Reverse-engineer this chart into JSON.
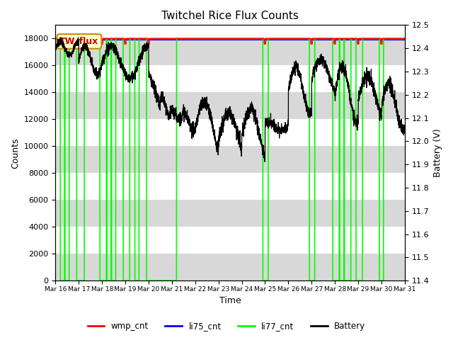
{
  "title": "Twitchel Rice Flux Counts",
  "xlabel": "Time",
  "ylabel_left": "Counts",
  "ylabel_right": "Battery (V)",
  "xlim_days": 15,
  "ylim_left": [
    0,
    19000
  ],
  "ylim_right": [
    11.4,
    12.5
  ],
  "x_tick_labels": [
    "Mar 16",
    "Mar 17",
    "Mar 18",
    "Mar 19",
    "Mar 20",
    "Mar 21",
    "Mar 22",
    "Mar 23",
    "Mar 24",
    "Mar 25",
    "Mar 26",
    "Mar 27",
    "Mar 28",
    "Mar 29",
    "Mar 30",
    "Mar 31"
  ],
  "yticks_left": [
    0,
    2000,
    4000,
    6000,
    8000,
    10000,
    12000,
    14000,
    16000,
    18000
  ],
  "yticks_right": [
    11.4,
    11.5,
    11.6,
    11.7,
    11.8,
    11.9,
    12.0,
    12.1,
    12.2,
    12.3,
    12.4,
    12.5
  ],
  "wmp_color": "#ff0000",
  "li75_color": "#0000ff",
  "li77_color": "#00ff00",
  "battery_color": "#000000",
  "annotation_text": "TW_flux",
  "bg_color": "#ffffff",
  "legend_entries": [
    "wmp_cnt",
    "li75_cnt",
    "li77_cnt",
    "Battery"
  ],
  "band_color": "#d8d8d8",
  "band_intervals": [
    [
      0,
      2000
    ],
    [
      4000,
      6000
    ],
    [
      8000,
      10000
    ],
    [
      12000,
      14000
    ],
    [
      16000,
      18000
    ]
  ]
}
